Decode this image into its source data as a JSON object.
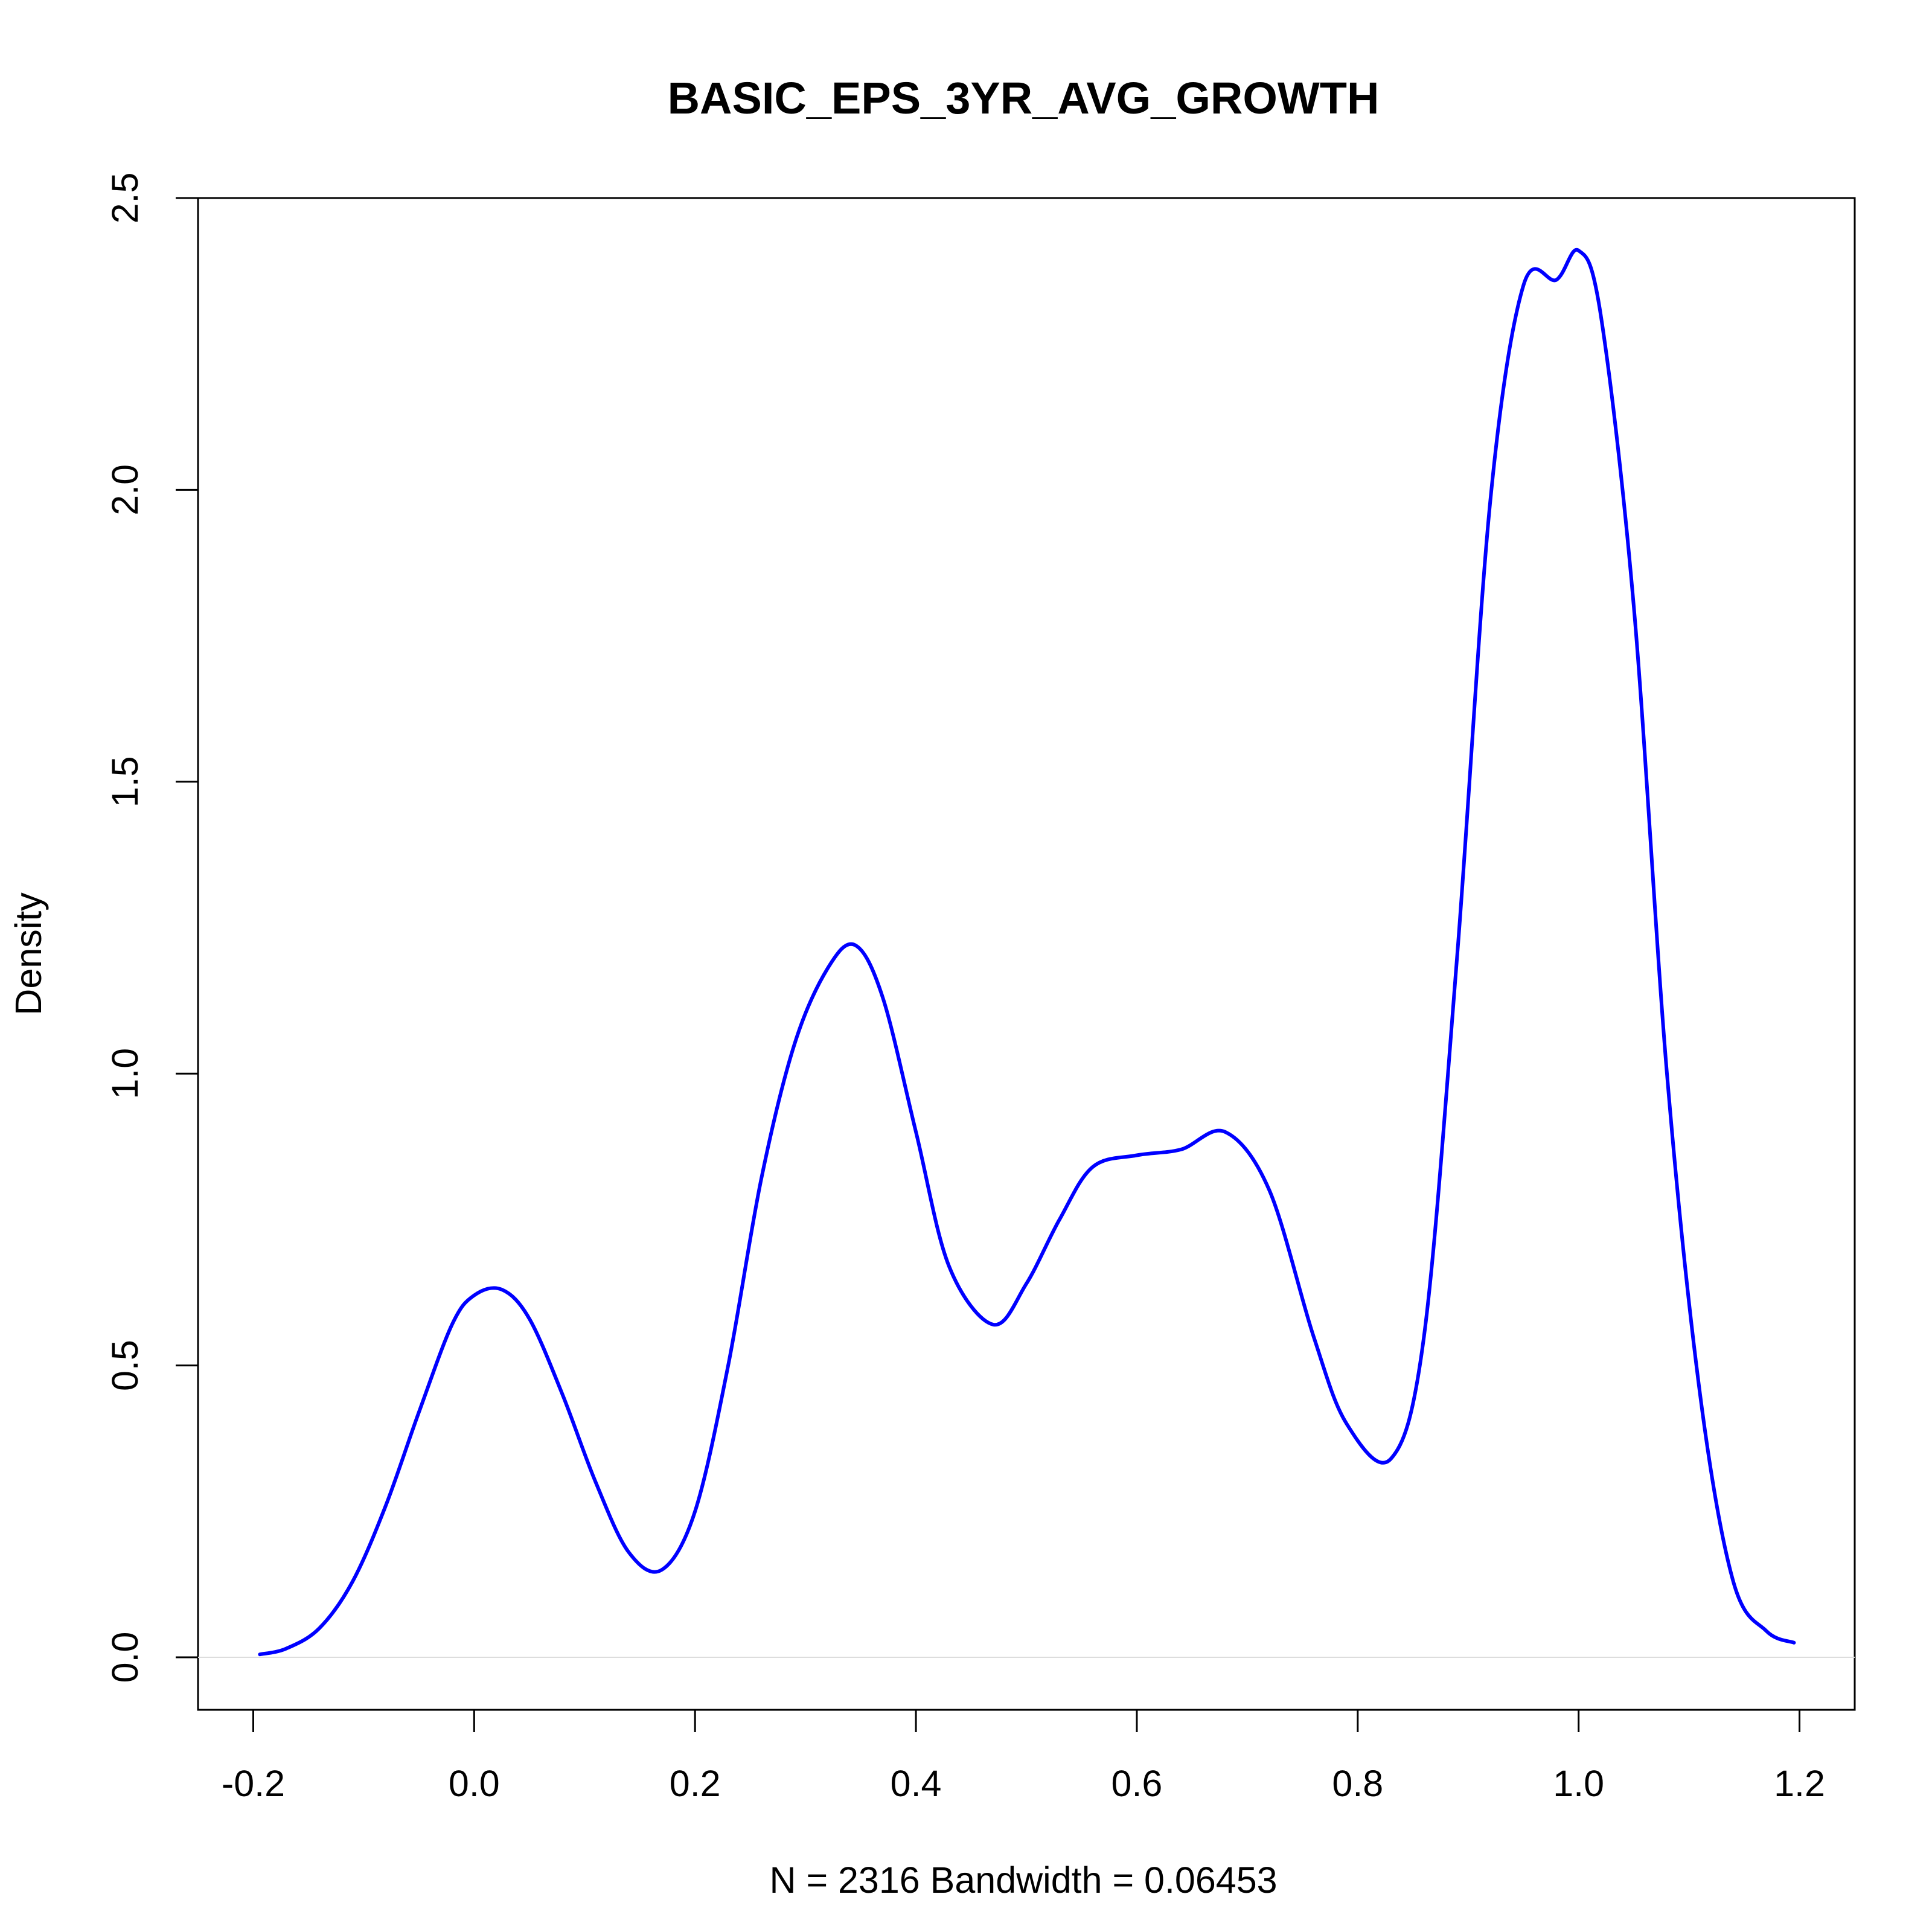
{
  "chart_data": {
    "type": "line",
    "title": "BASIC_EPS_3YR_AVG_GROWTH",
    "xlabel": "N = 2316   Bandwidth = 0.06453",
    "ylabel": "Density",
    "xlim": [
      -0.25,
      1.25
    ],
    "ylim": [
      -0.09,
      2.5
    ],
    "x_ticks": [
      -0.2,
      0.0,
      0.2,
      0.4,
      0.6,
      0.8,
      1.0,
      1.2
    ],
    "x_tick_labels": [
      "-0.2",
      "0.0",
      "0.2",
      "0.4",
      "0.6",
      "0.8",
      "1.0",
      "1.2"
    ],
    "y_ticks": [
      0.0,
      0.5,
      1.0,
      1.5,
      2.0,
      2.5
    ],
    "y_tick_labels": [
      "0.0",
      "0.5",
      "1.0",
      "1.5",
      "2.0",
      "2.5"
    ],
    "baseline": 0,
    "baseline_color": "#dddddd",
    "grid": false,
    "legend": "none",
    "series": [
      {
        "color": "#0000ff",
        "x": [
          -0.194,
          -0.17,
          -0.14,
          -0.11,
          -0.08,
          -0.05,
          -0.02,
          0.0,
          0.025,
          0.05,
          0.08,
          0.11,
          0.14,
          0.17,
          0.2,
          0.23,
          0.26,
          0.29,
          0.32,
          0.345,
          0.37,
          0.4,
          0.43,
          0.47,
          0.5,
          0.53,
          0.56,
          0.6,
          0.64,
          0.68,
          0.72,
          0.76,
          0.79,
          0.83,
          0.86,
          0.89,
          0.92,
          0.95,
          0.98,
          1.0,
          1.02,
          1.05,
          1.08,
          1.11,
          1.14,
          1.17,
          1.195
        ],
        "values": [
          0.005,
          0.015,
          0.05,
          0.13,
          0.26,
          0.42,
          0.57,
          0.62,
          0.63,
          0.58,
          0.45,
          0.3,
          0.18,
          0.15,
          0.25,
          0.5,
          0.82,
          1.05,
          1.18,
          1.22,
          1.13,
          0.9,
          0.67,
          0.57,
          0.64,
          0.75,
          0.84,
          0.86,
          0.87,
          0.9,
          0.8,
          0.55,
          0.4,
          0.34,
          0.55,
          1.2,
          1.98,
          2.35,
          2.36,
          2.41,
          2.3,
          1.8,
          1.0,
          0.45,
          0.13,
          0.045,
          0.025
        ]
      }
    ]
  }
}
